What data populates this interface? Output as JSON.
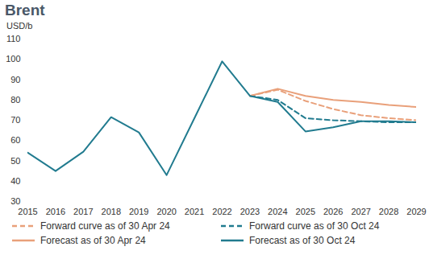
{
  "chart_data": {
    "type": "line",
    "title": "Brent",
    "y_label": "USD/b",
    "x": [
      2015,
      2016,
      2017,
      2018,
      2019,
      2020,
      2021,
      2022,
      2023,
      2024,
      2025,
      2026,
      2027,
      2028,
      2029
    ],
    "xlim": [
      2015,
      2029
    ],
    "xticks": [
      2015,
      2016,
      2017,
      2018,
      2019,
      2020,
      2021,
      2022,
      2023,
      2024,
      2025,
      2026,
      2027,
      2028,
      2029
    ],
    "ylim": [
      30,
      110
    ],
    "yticks": [
      30,
      40,
      50,
      60,
      70,
      80,
      90,
      100,
      110
    ],
    "grid": false,
    "legend": "bottom",
    "series": [
      {
        "name": "Forward curve as of 30 Apr 24",
        "color": "#e9a07a",
        "line_style": "dashed",
        "values": [
          null,
          null,
          null,
          null,
          null,
          null,
          null,
          null,
          82,
          85,
          79.5,
          75.5,
          72.5,
          71,
          70
        ]
      },
      {
        "name": "Forward curve as of 30 Oct 24",
        "color": "#217b8f",
        "line_style": "dashed",
        "values": [
          null,
          null,
          null,
          null,
          null,
          null,
          null,
          null,
          82,
          80,
          71,
          70,
          69.5,
          69,
          69
        ]
      },
      {
        "name": "Forecast as of 30 Apr 24",
        "color": "#e9a07a",
        "line_style": "solid",
        "values": [
          null,
          null,
          null,
          null,
          null,
          null,
          null,
          null,
          82,
          85.5,
          82,
          80,
          79,
          77.5,
          76.5
        ]
      },
      {
        "name": "Forecast as of 30 Oct 24",
        "color": "#217b8f",
        "line_style": "solid",
        "values": [
          54,
          45,
          54.5,
          71.5,
          64,
          43,
          71,
          99,
          82,
          79,
          64.5,
          66.5,
          69.5,
          69.5,
          69
        ]
      }
    ]
  }
}
